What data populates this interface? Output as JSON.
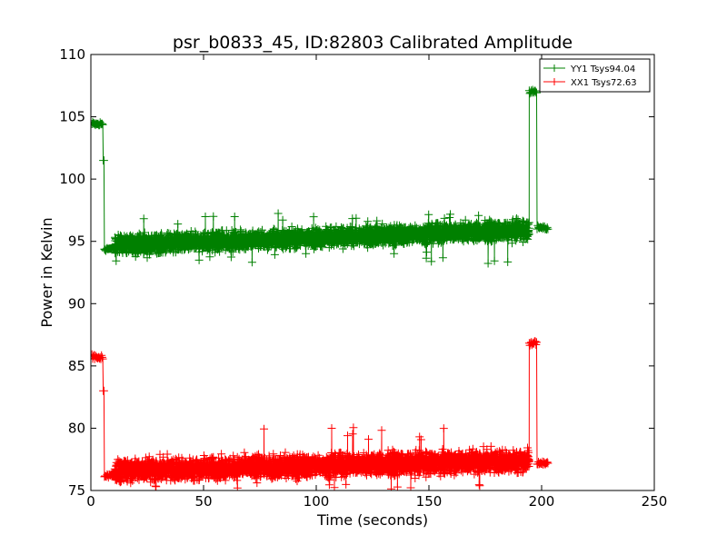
{
  "chart_data": {
    "type": "line",
    "title": "psr_b0833_45, ID:82803 Calibrated Amplitude",
    "xlabel": "Time (seconds)",
    "ylabel": "Power in Kelvin",
    "xlim": [
      0,
      250
    ],
    "ylim": [
      75,
      110
    ],
    "xticks": [
      0,
      50,
      100,
      150,
      200,
      250
    ],
    "yticks": [
      75,
      80,
      85,
      90,
      95,
      100,
      105,
      110
    ],
    "xtick_labels": [
      "0",
      "50",
      "100",
      "150",
      "200",
      "250"
    ],
    "ytick_labels": [
      "75",
      "80",
      "85",
      "90",
      "95",
      "100",
      "105",
      "110"
    ],
    "grid": false,
    "legend_position": "top-right",
    "marker": "+",
    "series": [
      {
        "name": "YY1 Tsys94.04",
        "color": "#008000",
        "segments": [
          {
            "x_start": 0.5,
            "x_end": 5.5,
            "mean": 104.4,
            "noise": 0.15
          },
          {
            "x_start": 5.5,
            "x_end": 6.0,
            "mean": 101.5,
            "noise": 0.0
          },
          {
            "x_start": 6.0,
            "x_end": 10.5,
            "mean": 94.4,
            "noise": 0.12
          },
          {
            "x_start": 10.5,
            "x_end": 194.5,
            "mean_start": 94.7,
            "mean_end": 95.9,
            "noise": 0.5,
            "spike_max": 97.3,
            "spike_min": 93.2
          },
          {
            "x_start": 194.5,
            "x_end": 198.0,
            "mean": 107.0,
            "noise": 0.15
          },
          {
            "x_start": 198.0,
            "x_end": 203.0,
            "mean": 96.1,
            "noise": 0.12
          }
        ]
      },
      {
        "name": "XX1 Tsys72.63",
        "color": "#ff0000",
        "segments": [
          {
            "x_start": 0.5,
            "x_end": 5.5,
            "mean": 85.7,
            "noise": 0.15
          },
          {
            "x_start": 5.5,
            "x_end": 6.0,
            "mean": 83.0,
            "noise": 0.0
          },
          {
            "x_start": 6.0,
            "x_end": 10.5,
            "mean": 76.2,
            "noise": 0.12
          },
          {
            "x_start": 10.5,
            "x_end": 194.5,
            "mean_start": 76.6,
            "mean_end": 77.4,
            "noise": 0.6,
            "spike_max": 80.3,
            "spike_min": 75.1
          },
          {
            "x_start": 194.5,
            "x_end": 198.0,
            "mean": 86.8,
            "noise": 0.15
          },
          {
            "x_start": 198.0,
            "x_end": 203.0,
            "mean": 77.2,
            "noise": 0.12
          }
        ]
      }
    ]
  }
}
